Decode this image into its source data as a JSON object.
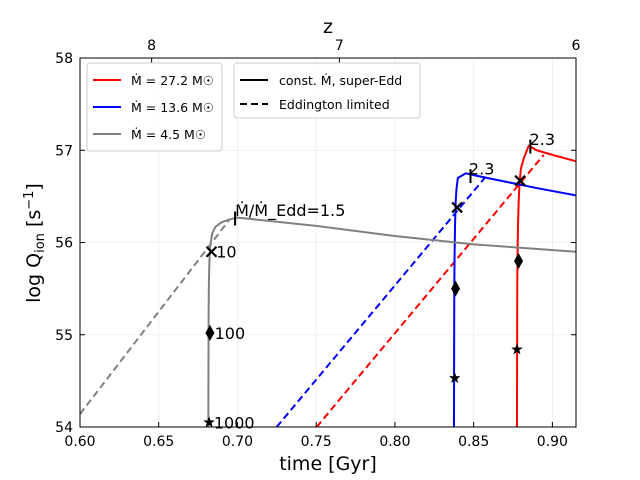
{
  "chart_data": {
    "type": "line",
    "xlabel": "time [Gyr]",
    "ylabel": "log Q_ion [s^-1]",
    "x2label": "z",
    "xlim": [
      0.6,
      0.915
    ],
    "ylim": [
      54,
      58
    ],
    "xticks": [
      "0.60",
      "0.65",
      "0.70",
      "0.75",
      "0.80",
      "0.85",
      "0.90"
    ],
    "xtick_values": [
      0.6,
      0.65,
      0.7,
      0.75,
      0.8,
      0.85,
      0.9
    ],
    "yticks": [
      "54",
      "55",
      "56",
      "57",
      "58"
    ],
    "ytick_values": [
      54,
      55,
      56,
      57,
      58
    ],
    "top_axis": {
      "ticks": [
        {
          "label": "8",
          "time": 0.6455
        },
        {
          "label": "7",
          "time": 0.7647
        },
        {
          "label": "6",
          "time": 0.915
        }
      ]
    },
    "grid": true,
    "legend_rate": {
      "placement": "top-left",
      "entries": [
        {
          "label": "Ṁ = 27.2 M☉",
          "color": "#ff0000"
        },
        {
          "label": "Ṁ = 13.6 M☉",
          "color": "#0000ff"
        },
        {
          "label": "Ṁ = 4.5 M☉",
          "color": "#808080"
        }
      ]
    },
    "legend_style": {
      "placement": "top-center",
      "entries": [
        {
          "label": "const. Ṁ, super-Edd",
          "style": "solid"
        },
        {
          "label": "Eddington limited",
          "style": "dashed"
        }
      ]
    },
    "series": [
      {
        "name": "Ṁ = 27.2 M☉ const. Ṁ, super-Edd",
        "color": "#ff0000",
        "style": "solid",
        "x": [
          0.8775,
          0.8776,
          0.8777,
          0.8779,
          0.8782,
          0.8786,
          0.8792,
          0.88,
          0.882,
          0.885,
          0.89,
          0.9,
          0.915
        ],
        "y": [
          54.0,
          54.8,
          55.5,
          55.9,
          56.2,
          56.45,
          56.65,
          56.8,
          56.92,
          57.05,
          57.0,
          56.95,
          56.88
        ]
      },
      {
        "name": "Ṁ = 27.2 M☉ Eddington limited",
        "color": "#ff0000",
        "style": "dashed",
        "x": [
          0.7503,
          0.8945
        ],
        "y": [
          54.0,
          56.95
        ]
      },
      {
        "name": "Ṁ = 13.6 M☉ const. Ṁ, super-Edd",
        "color": "#0000ff",
        "style": "solid",
        "x": [
          0.8375,
          0.8376,
          0.8377,
          0.8379,
          0.8382,
          0.8386,
          0.8392,
          0.84,
          0.842,
          0.845,
          0.85,
          0.87,
          0.89,
          0.915
        ],
        "y": [
          54.0,
          54.8,
          55.5,
          55.9,
          56.2,
          56.45,
          56.6,
          56.7,
          56.72,
          56.75,
          56.73,
          56.66,
          56.59,
          56.51
        ]
      },
      {
        "name": "Ṁ = 13.6 M☉ Eddington limited",
        "color": "#0000ff",
        "style": "dashed",
        "x": [
          0.7249,
          0.858
        ],
        "y": [
          54.0,
          56.72
        ]
      },
      {
        "name": "Ṁ = 4.5 M☉ const. Ṁ, super-Edd",
        "color": "#808080",
        "style": "solid",
        "x": [
          0.6815,
          0.6816,
          0.6817,
          0.6819,
          0.6822,
          0.6826,
          0.6833,
          0.684,
          0.686,
          0.69,
          0.695,
          0.7,
          0.75,
          0.8,
          0.85,
          0.915
        ],
        "y": [
          54.0,
          54.8,
          55.3,
          55.6,
          55.8,
          55.95,
          56.03,
          56.1,
          56.17,
          56.22,
          56.25,
          56.27,
          56.18,
          56.07,
          55.98,
          55.9
        ]
      },
      {
        "name": "Ṁ = 4.5 M☉ Eddington limited",
        "color": "#808080",
        "style": "dashed",
        "x": [
          0.6,
          0.695
        ],
        "y": [
          54.14,
          56.25
        ]
      }
    ],
    "markers": [
      {
        "name": "cross-grey-10",
        "shape": "x",
        "x": 0.6835,
        "y": 55.9
      },
      {
        "name": "diamond-grey-100",
        "shape": "diamond",
        "x": 0.6825,
        "y": 55.02
      },
      {
        "name": "star-grey-1000",
        "shape": "star",
        "x": 0.682,
        "y": 54.05
      },
      {
        "name": "cross-blue",
        "shape": "x",
        "x": 0.8395,
        "y": 56.38
      },
      {
        "name": "diamond-blue",
        "shape": "diamond",
        "x": 0.8385,
        "y": 55.5
      },
      {
        "name": "star-blue",
        "shape": "star",
        "x": 0.838,
        "y": 54.53
      },
      {
        "name": "cross-red",
        "shape": "x",
        "x": 0.8795,
        "y": 56.67
      },
      {
        "name": "diamond-red",
        "shape": "diamond",
        "x": 0.8785,
        "y": 55.8
      },
      {
        "name": "star-red",
        "shape": "star",
        "x": 0.8775,
        "y": 54.84
      }
    ],
    "tick_marks": [
      {
        "name": "edd-ratio-tick-grey",
        "x": 0.6985,
        "y": 56.26
      },
      {
        "name": "edd-ratio-tick-blue",
        "x": 0.848,
        "y": 56.72
      },
      {
        "name": "edd-ratio-tick-red",
        "x": 0.886,
        "y": 57.04
      }
    ],
    "annotations": [
      {
        "name": "annot-10",
        "text": "10",
        "x": 0.6865,
        "y": 55.9
      },
      {
        "name": "annot-100",
        "text": "100",
        "x": 0.6855,
        "y": 55.02
      },
      {
        "name": "annot-1000",
        "text": "1000",
        "x": 0.685,
        "y": 54.05
      },
      {
        "name": "annot-edd-ratio",
        "text": "Ṁ/Ṁ_Edd=1.5",
        "x": 0.6985,
        "y": 56.35
      },
      {
        "name": "annot-2.3-blue",
        "text": "2.3",
        "x": 0.847,
        "y": 56.8
      },
      {
        "name": "annot-2.3-red",
        "text": "2.3",
        "x": 0.8855,
        "y": 57.12
      }
    ]
  }
}
